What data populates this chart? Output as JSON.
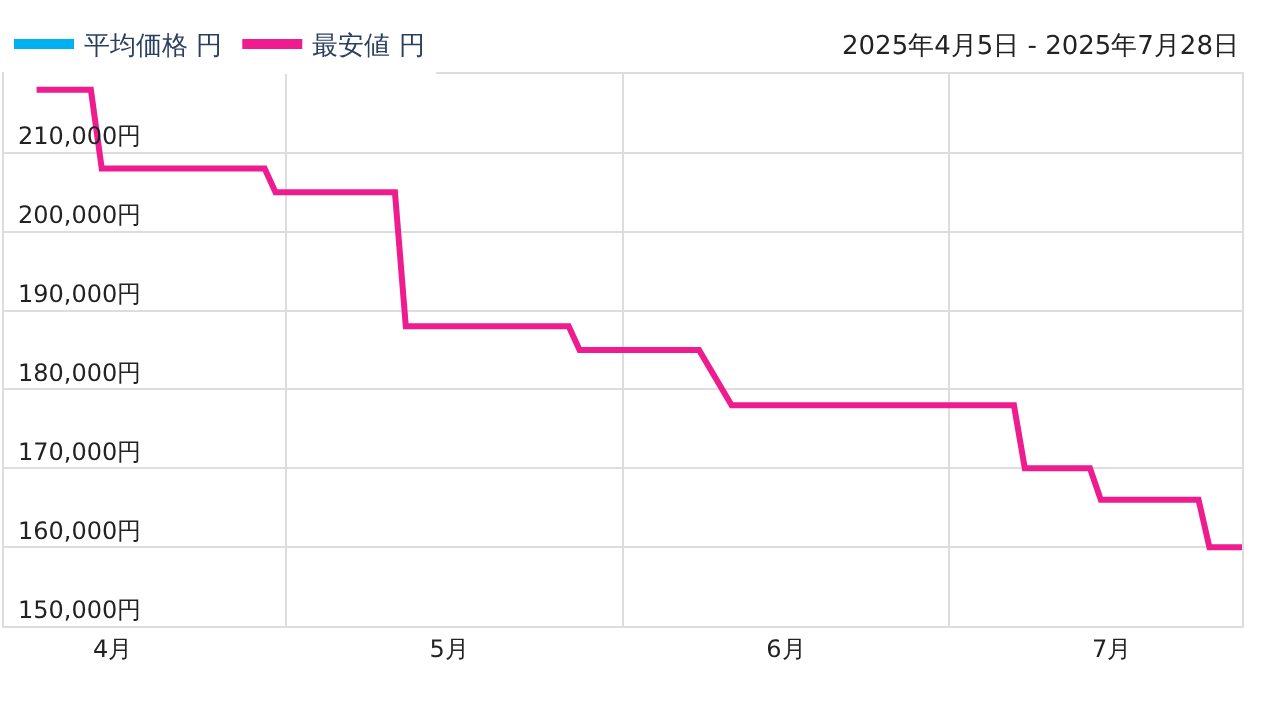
{
  "chart_data": {
    "type": "line",
    "annotations": [
      "2025年4月5日 - 2025年7月28日"
    ],
    "x": [
      "2025-04-08",
      "2025-04-13",
      "2025-04-14",
      "2025-04-29",
      "2025-04-30",
      "2025-05-11",
      "2025-05-12",
      "2025-05-27",
      "2025-05-28",
      "2025-06-08",
      "2025-06-11",
      "2025-07-07",
      "2025-07-08",
      "2025-07-14",
      "2025-07-15",
      "2025-07-24",
      "2025-07-25",
      "2025-07-28"
    ],
    "series": [
      {
        "name": "平均価格 円",
        "color": "#00b0f0",
        "values": [
          null,
          null,
          null,
          null,
          null,
          null,
          null,
          null,
          null,
          null,
          null,
          null,
          null,
          null,
          null,
          null,
          null,
          null
        ]
      },
      {
        "name": "最安値 円",
        "color": "#ee1c8e",
        "values": [
          218000,
          218000,
          208000,
          208000,
          205000,
          205000,
          188000,
          188000,
          185000,
          185000,
          178000,
          178000,
          170000,
          170000,
          166000,
          166000,
          160000,
          160000
        ]
      }
    ],
    "xlim": [
      "2025-04-05",
      "2025-07-28"
    ],
    "xticks": [
      {
        "value": "2025-04-15",
        "label": "4月"
      },
      {
        "value": "2025-05-01",
        "label": null
      },
      {
        "value": "2025-05-16",
        "label": "5月"
      },
      {
        "value": "2025-06-01",
        "label": null
      },
      {
        "value": "2025-06-16",
        "label": "6月"
      },
      {
        "value": "2025-07-01",
        "label": null
      },
      {
        "value": "2025-07-16",
        "label": "7月"
      }
    ],
    "ylim": [
      150000,
      220000
    ],
    "yticks": [
      {
        "value": 150000,
        "label": "150,000円"
      },
      {
        "value": 160000,
        "label": "160,000円"
      },
      {
        "value": 170000,
        "label": "170,000円"
      },
      {
        "value": 180000,
        "label": "180,000円"
      },
      {
        "value": 190000,
        "label": "190,000円"
      },
      {
        "value": 200000,
        "label": "200,000円"
      },
      {
        "value": 210000,
        "label": "210,000円"
      }
    ],
    "grid": true,
    "legend": "top left",
    "marker": "none",
    "line_style": "solid"
  }
}
